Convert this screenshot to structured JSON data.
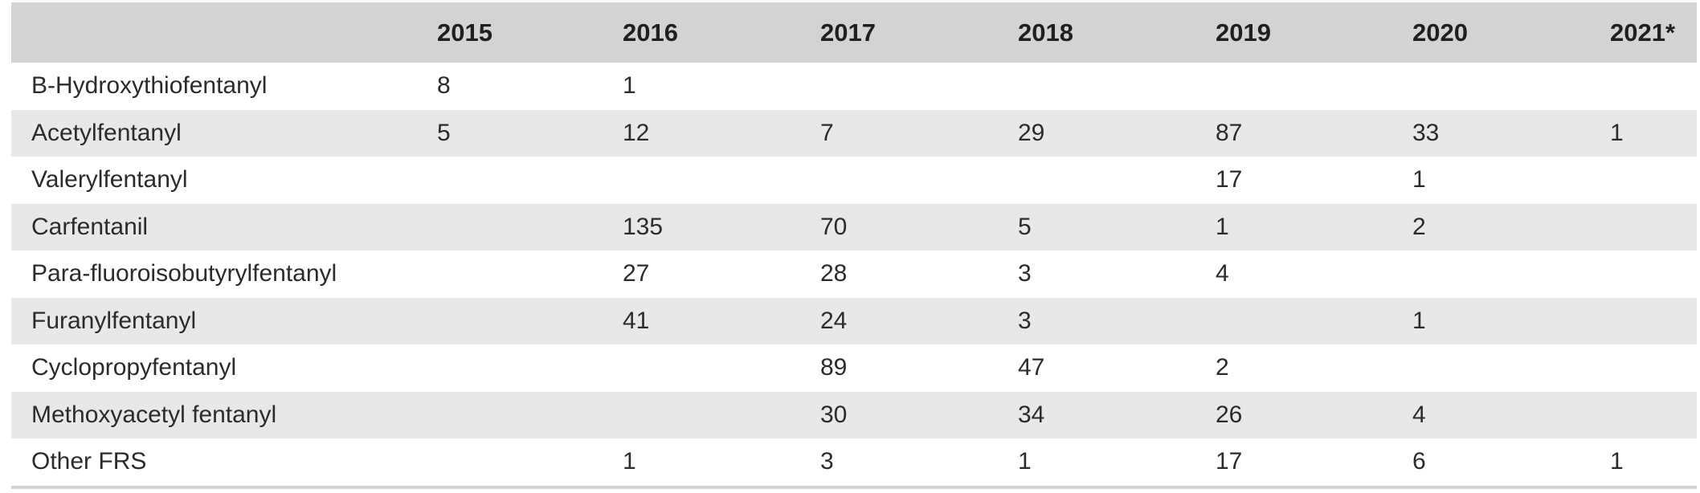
{
  "table": {
    "headers": [
      "",
      "2015",
      "2016",
      "2017",
      "2018",
      "2019",
      "2020",
      "2021*"
    ],
    "rows": [
      [
        "B-Hydroxythiofentanyl",
        "8",
        "1",
        "",
        "",
        "",
        "",
        ""
      ],
      [
        "Acetylfentanyl",
        "5",
        "12",
        "7",
        "29",
        "87",
        "33",
        "1"
      ],
      [
        "Valerylfentanyl",
        "",
        "",
        "",
        "",
        "17",
        "1",
        ""
      ],
      [
        "Carfentanil",
        "",
        "135",
        "70",
        "5",
        "1",
        "2",
        ""
      ],
      [
        "Para-fluoroisobutyrylfentanyl",
        "",
        "27",
        "28",
        "3",
        "4",
        "",
        ""
      ],
      [
        "Furanylfentanyl",
        "",
        "41",
        "24",
        "3",
        "",
        "1",
        ""
      ],
      [
        "Cyclopropyfentanyl",
        "",
        "",
        "89",
        "47",
        "2",
        "",
        ""
      ],
      [
        "Methoxyacetyl fentanyl",
        "",
        "",
        "30",
        "34",
        "26",
        "4",
        ""
      ],
      [
        "Other FRS",
        "",
        "1",
        "3",
        "1",
        "17",
        "6",
        "1"
      ]
    ]
  }
}
